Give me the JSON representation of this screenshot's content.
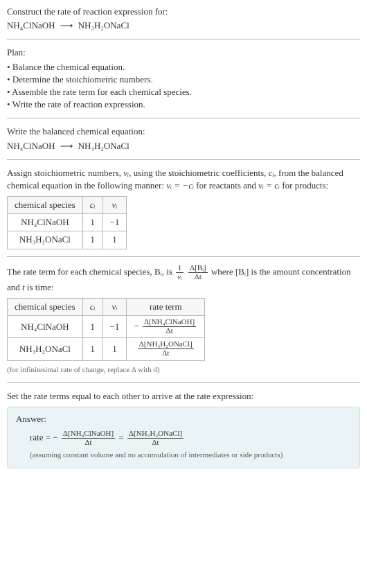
{
  "header": {
    "title": "Construct the rate of reaction expression for:",
    "reactant": "NH₄ClNaOH",
    "arrow": "⟶",
    "product": "NH₃H₂ONaCl"
  },
  "plan": {
    "label": "Plan:",
    "items": [
      "Balance the chemical equation.",
      "Determine the stoichiometric numbers.",
      "Assemble the rate term for each chemical species.",
      "Write the rate of reaction expression."
    ]
  },
  "balanced": {
    "label": "Write the balanced chemical equation:",
    "reactant": "NH₄ClNaOH",
    "arrow": "⟶",
    "product": "NH₃H₂ONaCl"
  },
  "stoich": {
    "intro_pre": "Assign stoichiometric numbers, ",
    "nu_i": "νᵢ",
    "intro_mid1": ", using the stoichiometric coefficients, ",
    "c_i": "cᵢ",
    "intro_mid2": ", from the balanced chemical equation in the following manner: ",
    "rel_reac": "νᵢ = −cᵢ",
    "for_reac": " for reactants and ",
    "rel_prod": "νᵢ = cᵢ",
    "for_prod": " for products:",
    "columns": [
      "chemical species",
      "cᵢ",
      "νᵢ"
    ],
    "rows": [
      {
        "species": "NH₄ClNaOH",
        "c": "1",
        "nu": "−1"
      },
      {
        "species": "NH₃H₂ONaCl",
        "c": "1",
        "nu": "1"
      }
    ]
  },
  "rateterm": {
    "intro_a": "The rate term for each chemical species, Bᵢ, is ",
    "frac1_num": "1",
    "frac1_den": "νᵢ",
    "frac2_num": "Δ[Bᵢ]",
    "frac2_den": "Δt",
    "intro_b": " where [Bᵢ] is the amount concentration and ",
    "t": "t",
    "intro_c": " is time:",
    "columns": [
      "chemical species",
      "cᵢ",
      "νᵢ",
      "rate term"
    ],
    "rows": [
      {
        "species": "NH₄ClNaOH",
        "c": "1",
        "nu": "−1",
        "rate_sign": "−",
        "rate_num": "Δ[NH₄ClNaOH]",
        "rate_den": "Δt"
      },
      {
        "species": "NH₃H₂ONaCl",
        "c": "1",
        "nu": "1",
        "rate_sign": "",
        "rate_num": "Δ[NH₃H₂ONaCl]",
        "rate_den": "Δt"
      }
    ],
    "footnote": "(for infinitesimal rate of change, replace Δ with d)"
  },
  "final": {
    "label": "Set the rate terms equal to each other to arrive at the rate expression:"
  },
  "answer": {
    "label": "Answer:",
    "rate_label": "rate = ",
    "t1_sign": "−",
    "t1_num": "Δ[NH₄ClNaOH]",
    "t1_den": "Δt",
    "eq": " = ",
    "t2_sign": "",
    "t2_num": "Δ[NH₃H₂ONaCl]",
    "t2_den": "Δt",
    "assumption": "(assuming constant volume and no accumulation of intermediates or side products)"
  },
  "colors": {
    "border": "#b0b0b0",
    "answer_bg": "#eaf3f6",
    "answer_border": "#c9dde4"
  }
}
